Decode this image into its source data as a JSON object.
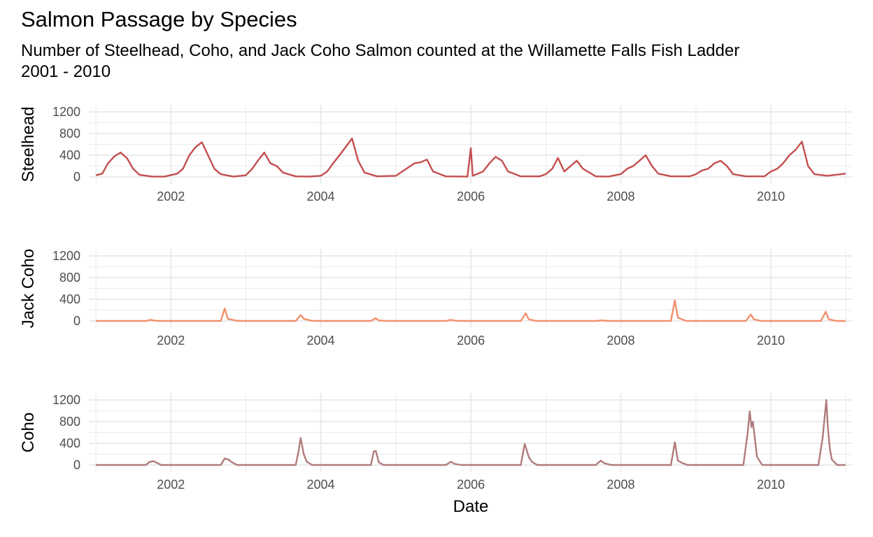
{
  "title": "Salmon Passage by Species",
  "subtitle": "Number of Steelhead, Coho, and Jack Coho Salmon counted at the Willamette Falls Fish Ladder\n2001 - 2010",
  "xlabel": "Date",
  "colors": {
    "steelhead": "#c44e4e",
    "jack_coho": "#f28f6c",
    "coho": "#b07b7b",
    "grid": "#ebebeb"
  },
  "chart_data": [
    {
      "type": "line",
      "ylabel": "Steelhead",
      "series": [
        {
          "name": "Steelhead",
          "color": "#c44e4e",
          "points": [
            [
              "2001-01-01",
              30
            ],
            [
              "2001-02-01",
              60
            ],
            [
              "2001-03-01",
              250
            ],
            [
              "2001-04-01",
              380
            ],
            [
              "2001-05-01",
              450
            ],
            [
              "2001-06-01",
              350
            ],
            [
              "2001-07-01",
              150
            ],
            [
              "2001-08-01",
              40
            ],
            [
              "2001-10-01",
              5
            ],
            [
              "2001-12-01",
              5
            ],
            [
              "2002-02-01",
              60
            ],
            [
              "2002-03-01",
              150
            ],
            [
              "2002-04-01",
              400
            ],
            [
              "2002-05-01",
              550
            ],
            [
              "2002-06-01",
              640
            ],
            [
              "2002-07-01",
              400
            ],
            [
              "2002-08-01",
              150
            ],
            [
              "2002-09-01",
              50
            ],
            [
              "2002-11-01",
              5
            ],
            [
              "2003-01-01",
              30
            ],
            [
              "2003-02-01",
              150
            ],
            [
              "2003-03-01",
              300
            ],
            [
              "2003-04-01",
              450
            ],
            [
              "2003-05-01",
              250
            ],
            [
              "2003-06-01",
              200
            ],
            [
              "2003-07-01",
              80
            ],
            [
              "2003-09-01",
              10
            ],
            [
              "2003-11-01",
              5
            ],
            [
              "2004-01-01",
              20
            ],
            [
              "2004-02-01",
              100
            ],
            [
              "2004-03-01",
              250
            ],
            [
              "2004-04-01",
              400
            ],
            [
              "2004-05-01",
              550
            ],
            [
              "2004-06-01",
              710
            ],
            [
              "2004-07-01",
              300
            ],
            [
              "2004-08-01",
              80
            ],
            [
              "2004-10-01",
              10
            ],
            [
              "2005-01-01",
              20
            ],
            [
              "2005-02-01",
              100
            ],
            [
              "2005-03-01",
              170
            ],
            [
              "2005-04-01",
              250
            ],
            [
              "2005-05-01",
              270
            ],
            [
              "2005-06-01",
              320
            ],
            [
              "2005-07-01",
              100
            ],
            [
              "2005-09-01",
              10
            ],
            [
              "2005-12-15",
              5
            ],
            [
              "2006-01-01",
              530
            ],
            [
              "2006-01-10",
              20
            ],
            [
              "2006-03-01",
              100
            ],
            [
              "2006-04-01",
              250
            ],
            [
              "2006-05-01",
              370
            ],
            [
              "2006-06-01",
              300
            ],
            [
              "2006-07-01",
              100
            ],
            [
              "2006-09-01",
              10
            ],
            [
              "2006-12-01",
              10
            ],
            [
              "2007-01-01",
              50
            ],
            [
              "2007-02-01",
              150
            ],
            [
              "2007-03-01",
              350
            ],
            [
              "2007-04-01",
              100
            ],
            [
              "2007-05-01",
              200
            ],
            [
              "2007-06-01",
              300
            ],
            [
              "2007-07-01",
              150
            ],
            [
              "2007-09-01",
              10
            ],
            [
              "2007-11-01",
              5
            ],
            [
              "2008-01-01",
              50
            ],
            [
              "2008-02-01",
              150
            ],
            [
              "2008-03-01",
              200
            ],
            [
              "2008-04-01",
              300
            ],
            [
              "2008-05-01",
              400
            ],
            [
              "2008-06-01",
              200
            ],
            [
              "2008-07-01",
              60
            ],
            [
              "2008-09-01",
              10
            ],
            [
              "2008-12-01",
              10
            ],
            [
              "2009-01-01",
              50
            ],
            [
              "2009-02-01",
              120
            ],
            [
              "2009-03-01",
              150
            ],
            [
              "2009-04-01",
              250
            ],
            [
              "2009-05-01",
              300
            ],
            [
              "2009-06-01",
              200
            ],
            [
              "2009-07-01",
              50
            ],
            [
              "2009-09-01",
              10
            ],
            [
              "2009-12-01",
              10
            ],
            [
              "2010-01-01",
              100
            ],
            [
              "2010-02-01",
              150
            ],
            [
              "2010-03-01",
              250
            ],
            [
              "2010-04-01",
              400
            ],
            [
              "2010-05-01",
              500
            ],
            [
              "2010-06-01",
              650
            ],
            [
              "2010-07-01",
              200
            ],
            [
              "2010-08-01",
              50
            ],
            [
              "2010-10-01",
              20
            ],
            [
              "2010-12-31",
              60
            ]
          ]
        }
      ],
      "y_ticks": [
        "1200",
        "800",
        "400",
        "0"
      ],
      "x_ticks": [
        "2002",
        "2004",
        "2006",
        "2008",
        "2010"
      ],
      "ylim": [
        0,
        1200
      ]
    },
    {
      "type": "line",
      "ylabel": "Jack Coho",
      "series": [
        {
          "name": "Jack Coho",
          "color": "#f28f6c",
          "points": [
            [
              "2001-01-01",
              0
            ],
            [
              "2001-09-01",
              0
            ],
            [
              "2001-09-25",
              20
            ],
            [
              "2001-10-15",
              5
            ],
            [
              "2001-11-15",
              0
            ],
            [
              "2002-09-01",
              0
            ],
            [
              "2002-09-20",
              230
            ],
            [
              "2002-10-05",
              40
            ],
            [
              "2002-11-15",
              5
            ],
            [
              "2002-12-15",
              0
            ],
            [
              "2003-09-01",
              0
            ],
            [
              "2003-09-25",
              110
            ],
            [
              "2003-10-10",
              40
            ],
            [
              "2003-11-15",
              5
            ],
            [
              "2003-12-15",
              0
            ],
            [
              "2004-09-01",
              0
            ],
            [
              "2004-09-25",
              50
            ],
            [
              "2004-10-10",
              10
            ],
            [
              "2004-11-15",
              0
            ],
            [
              "2005-09-01",
              0
            ],
            [
              "2005-09-25",
              20
            ],
            [
              "2005-10-15",
              5
            ],
            [
              "2005-11-15",
              0
            ],
            [
              "2006-09-01",
              0
            ],
            [
              "2006-09-25",
              140
            ],
            [
              "2006-10-10",
              30
            ],
            [
              "2006-11-15",
              0
            ],
            [
              "2007-09-01",
              0
            ],
            [
              "2007-10-01",
              10
            ],
            [
              "2007-11-01",
              0
            ],
            [
              "2008-09-01",
              0
            ],
            [
              "2008-09-20",
              380
            ],
            [
              "2008-10-05",
              60
            ],
            [
              "2008-11-15",
              0
            ],
            [
              "2009-09-01",
              0
            ],
            [
              "2009-09-25",
              120
            ],
            [
              "2009-10-10",
              30
            ],
            [
              "2009-11-15",
              0
            ],
            [
              "2010-09-01",
              0
            ],
            [
              "2010-09-25",
              170
            ],
            [
              "2010-10-10",
              30
            ],
            [
              "2010-11-15",
              0
            ],
            [
              "2010-12-31",
              0
            ]
          ]
        }
      ],
      "y_ticks": [
        "1200",
        "800",
        "400",
        "0"
      ],
      "x_ticks": [
        "2002",
        "2004",
        "2006",
        "2008",
        "2010"
      ],
      "ylim": [
        0,
        1200
      ]
    },
    {
      "type": "line",
      "ylabel": "Coho",
      "series": [
        {
          "name": "Coho",
          "color": "#b07b7b",
          "points": [
            [
              "2001-01-01",
              0
            ],
            [
              "2001-09-01",
              0
            ],
            [
              "2001-09-20",
              60
            ],
            [
              "2001-10-10",
              70
            ],
            [
              "2001-10-25",
              40
            ],
            [
              "2001-11-15",
              0
            ],
            [
              "2002-09-01",
              0
            ],
            [
              "2002-09-20",
              120
            ],
            [
              "2002-10-10",
              100
            ],
            [
              "2002-10-25",
              50
            ],
            [
              "2002-11-20",
              0
            ],
            [
              "2003-09-01",
              0
            ],
            [
              "2003-09-15",
              250
            ],
            [
              "2003-09-25",
              500
            ],
            [
              "2003-10-10",
              200
            ],
            [
              "2003-10-25",
              60
            ],
            [
              "2003-11-20",
              0
            ],
            [
              "2004-09-01",
              0
            ],
            [
              "2004-09-15",
              250
            ],
            [
              "2004-09-25",
              260
            ],
            [
              "2004-10-10",
              50
            ],
            [
              "2004-11-01",
              0
            ],
            [
              "2005-09-01",
              0
            ],
            [
              "2005-09-25",
              60
            ],
            [
              "2005-10-15",
              20
            ],
            [
              "2005-11-15",
              0
            ],
            [
              "2006-09-01",
              0
            ],
            [
              "2006-09-20",
              390
            ],
            [
              "2006-10-10",
              150
            ],
            [
              "2006-10-25",
              60
            ],
            [
              "2006-11-20",
              0
            ],
            [
              "2007-09-01",
              0
            ],
            [
              "2007-09-25",
              80
            ],
            [
              "2007-10-15",
              30
            ],
            [
              "2007-11-15",
              0
            ],
            [
              "2008-09-01",
              0
            ],
            [
              "2008-09-20",
              420
            ],
            [
              "2008-10-05",
              80
            ],
            [
              "2008-10-25",
              40
            ],
            [
              "2008-11-20",
              0
            ],
            [
              "2009-08-20",
              0
            ],
            [
              "2009-09-10",
              600
            ],
            [
              "2009-09-20",
              990
            ],
            [
              "2009-09-28",
              700
            ],
            [
              "2009-10-05",
              800
            ],
            [
              "2009-10-15",
              500
            ],
            [
              "2009-10-25",
              150
            ],
            [
              "2009-11-20",
              0
            ],
            [
              "2010-08-20",
              0
            ],
            [
              "2010-09-10",
              500
            ],
            [
              "2010-09-20",
              900
            ],
            [
              "2010-09-28",
              1200
            ],
            [
              "2010-10-05",
              700
            ],
            [
              "2010-10-15",
              300
            ],
            [
              "2010-10-25",
              100
            ],
            [
              "2010-11-20",
              0
            ],
            [
              "2010-12-31",
              0
            ]
          ]
        }
      ],
      "y_ticks": [
        "1200",
        "800",
        "400",
        "0"
      ],
      "x_ticks": [
        "2002",
        "2004",
        "2006",
        "2008",
        "2010"
      ],
      "ylim": [
        0,
        1200
      ]
    }
  ]
}
